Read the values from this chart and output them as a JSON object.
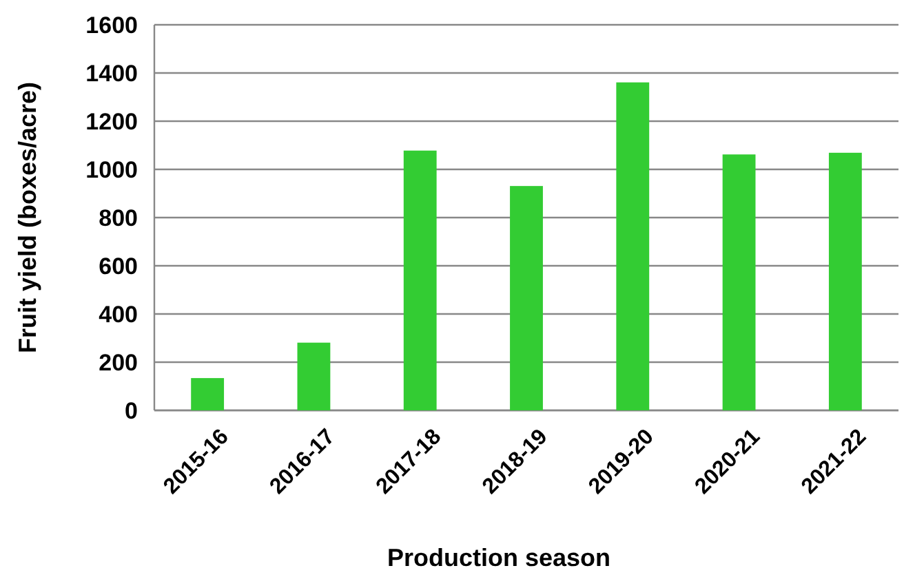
{
  "chart_data": {
    "type": "bar",
    "xlabel": "Production season",
    "ylabel": "Fruit yield (boxes/acre)",
    "categories": [
      "2015-16",
      "2016-17",
      "2017-18",
      "2018-19",
      "2019-20",
      "2020-21",
      "2021-22"
    ],
    "values": [
      134,
      281,
      1078,
      931,
      1361,
      1062,
      1069
    ],
    "color": "#33cc33",
    "ylim": [
      0,
      1600
    ],
    "yticks": [
      0,
      200,
      400,
      600,
      800,
      1000,
      1200,
      1400,
      1600
    ],
    "grid": "y"
  }
}
